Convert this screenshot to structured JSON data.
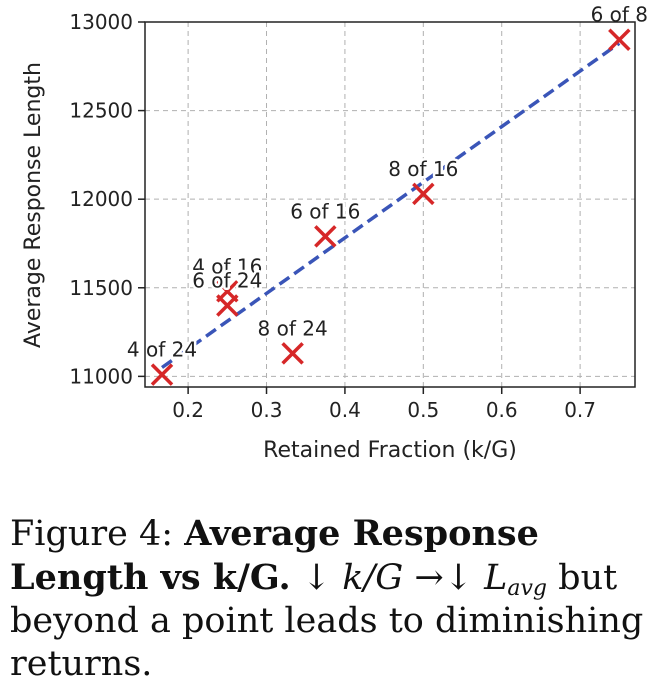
{
  "chart_data": {
    "type": "scatter",
    "xlabel": "Retained Fraction (k/G)",
    "ylabel": "Average Response Length",
    "xlim": [
      0.145,
      0.77
    ],
    "ylim": [
      10940,
      13000
    ],
    "xticks": [
      0.2,
      0.3,
      0.4,
      0.5,
      0.6,
      0.7
    ],
    "xtick_labels": [
      "0.2",
      "0.3",
      "0.4",
      "0.5",
      "0.6",
      "0.7"
    ],
    "yticks": [
      11000,
      11500,
      12000,
      12500,
      13000
    ],
    "ytick_labels": [
      "11000",
      "11500",
      "12000",
      "12500",
      "13000"
    ],
    "grid": true,
    "marker": "x",
    "marker_color": "#d62728",
    "points": [
      {
        "label": "4 of 24",
        "x": 0.1667,
        "y": 11010
      },
      {
        "label": "4 of 16",
        "x": 0.25,
        "y": 11480
      },
      {
        "label": "6 of 24",
        "x": 0.25,
        "y": 11400
      },
      {
        "label": "8 of 24",
        "x": 0.3333,
        "y": 11130
      },
      {
        "label": "6 of 16",
        "x": 0.375,
        "y": 11790
      },
      {
        "label": "8 of 16",
        "x": 0.5,
        "y": 12030
      },
      {
        "label": "6 of 8",
        "x": 0.75,
        "y": 12900
      }
    ],
    "trendline": {
      "style": "dashed",
      "color": "#3a55b8",
      "x": [
        0.1667,
        0.75
      ],
      "y": [
        11050,
        12880
      ]
    }
  },
  "caption": {
    "prefix": "Figure 4:",
    "bold": "Average Response Length vs k/G.",
    "math_left": "↓ k/G →↓ L",
    "math_sub": "avg",
    "rest": "but beyond a point leads to diminishing returns."
  }
}
